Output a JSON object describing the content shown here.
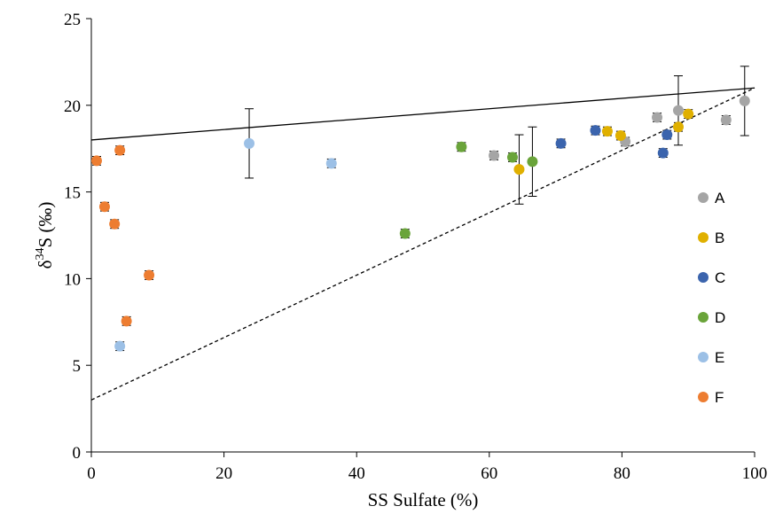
{
  "chart_data": {
    "type": "scatter",
    "xlabel": "SS Sulfate (%)",
    "ylabel_main": "δ",
    "ylabel_sup": "34",
    "ylabel_rest": "S (‰)",
    "xlim": [
      0,
      100
    ],
    "ylim": [
      0,
      25
    ],
    "x_ticks": [
      0,
      20,
      40,
      60,
      80,
      100
    ],
    "y_ticks": [
      0,
      5,
      10,
      15,
      20,
      25
    ],
    "grid": false,
    "legend_position": "right",
    "colors": {
      "A": "#a5a5a5",
      "B": "#e0b000",
      "C": "#3b64ad",
      "D": "#6aa43a",
      "E": "#9cc0e6",
      "F": "#ed7d31",
      "line": "#000000"
    },
    "series": [
      {
        "name": "A",
        "points": [
          {
            "x": 60.7,
            "y": 17.1,
            "err": 0.25
          },
          {
            "x": 80.5,
            "y": 17.9,
            "err": 0.25
          },
          {
            "x": 85.3,
            "y": 19.3,
            "err": 0.25
          },
          {
            "x": 88.5,
            "y": 19.7,
            "err": 2.0
          },
          {
            "x": 95.7,
            "y": 19.15,
            "err": 0.25
          },
          {
            "x": 98.5,
            "y": 20.25,
            "err": 2.0
          }
        ]
      },
      {
        "name": "B",
        "points": [
          {
            "x": 64.5,
            "y": 16.3,
            "err": 2.0
          },
          {
            "x": 77.8,
            "y": 18.5,
            "err": 0.25
          },
          {
            "x": 79.8,
            "y": 18.25,
            "err": 0.25
          },
          {
            "x": 88.5,
            "y": 18.75,
            "err": 0.25
          },
          {
            "x": 90.0,
            "y": 19.5,
            "err": 0.25
          }
        ]
      },
      {
        "name": "C",
        "points": [
          {
            "x": 70.8,
            "y": 17.8,
            "err": 0.25
          },
          {
            "x": 76.0,
            "y": 18.55,
            "err": 0.25
          },
          {
            "x": 86.2,
            "y": 17.25,
            "err": 0.25
          },
          {
            "x": 86.8,
            "y": 18.3,
            "err": 0.25
          }
        ]
      },
      {
        "name": "D",
        "points": [
          {
            "x": 47.3,
            "y": 12.6,
            "err": 0.25
          },
          {
            "x": 55.8,
            "y": 17.6,
            "err": 0.25
          },
          {
            "x": 63.5,
            "y": 17.0,
            "err": 0.25
          },
          {
            "x": 66.5,
            "y": 16.75,
            "err": 2.0
          }
        ]
      },
      {
        "name": "E",
        "points": [
          {
            "x": 4.3,
            "y": 6.1,
            "err": 0.25
          },
          {
            "x": 23.8,
            "y": 17.8,
            "err": 2.0
          },
          {
            "x": 36.2,
            "y": 16.65,
            "err": 0.25
          }
        ]
      },
      {
        "name": "F",
        "points": [
          {
            "x": 0.8,
            "y": 16.8,
            "err": 0.25
          },
          {
            "x": 2.0,
            "y": 14.15,
            "err": 0.25
          },
          {
            "x": 3.5,
            "y": 13.15,
            "err": 0.25
          },
          {
            "x": 4.3,
            "y": 17.4,
            "err": 0.25
          },
          {
            "x": 5.3,
            "y": 7.55,
            "err": 0.25
          },
          {
            "x": 8.7,
            "y": 10.2,
            "err": 0.25
          }
        ]
      }
    ],
    "lines": [
      {
        "style": "solid",
        "from": [
          0,
          18.0
        ],
        "to": [
          100,
          21.0
        ]
      },
      {
        "style": "dashed",
        "from": [
          0,
          3.0
        ],
        "to": [
          100,
          21.0
        ]
      }
    ]
  }
}
